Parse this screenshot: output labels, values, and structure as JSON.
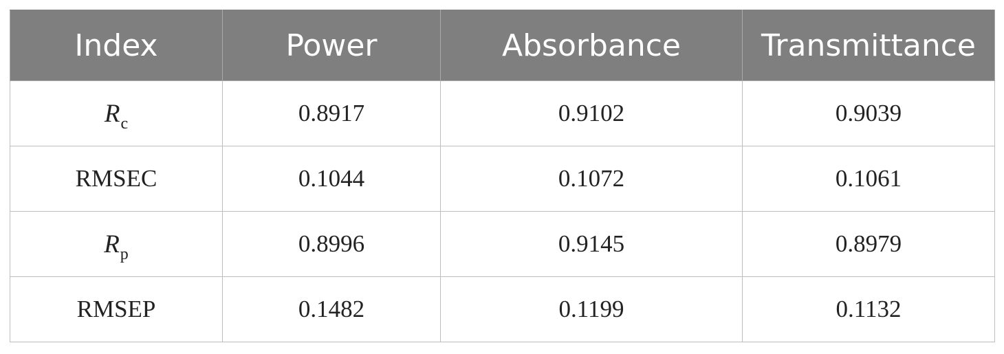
{
  "table": {
    "headers": [
      "Index",
      "Power",
      "Absorbance",
      "Transmittance"
    ],
    "rows": [
      {
        "index": {
          "symbol": "R",
          "subscript": "c"
        },
        "values": [
          "0.8917",
          "0.9102",
          "0.9039"
        ]
      },
      {
        "index": {
          "text": "RMSEC"
        },
        "values": [
          "0.1044",
          "0.1072",
          "0.1061"
        ]
      },
      {
        "index": {
          "symbol": "R",
          "subscript": "p"
        },
        "values": [
          "0.8996",
          "0.9145",
          "0.8979"
        ]
      },
      {
        "index": {
          "text": "RMSEP"
        },
        "values": [
          "0.1482",
          "0.1199",
          "0.1132"
        ]
      }
    ]
  }
}
